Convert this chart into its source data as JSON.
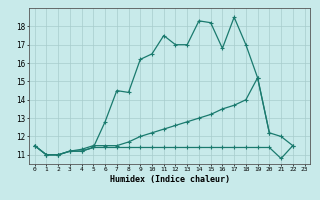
{
  "xlabel": "Humidex (Indice chaleur)",
  "x_values": [
    0,
    1,
    2,
    3,
    4,
    5,
    6,
    7,
    8,
    9,
    10,
    11,
    12,
    13,
    14,
    15,
    16,
    17,
    18,
    19,
    20,
    21,
    22,
    23
  ],
  "line1": [
    11.5,
    11.0,
    11.0,
    11.2,
    11.2,
    11.4,
    12.8,
    14.5,
    14.4,
    16.2,
    16.5,
    17.5,
    17.0,
    17.0,
    18.3,
    18.2,
    16.8,
    18.5,
    17.0,
    15.2,
    12.2,
    null,
    null,
    null
  ],
  "line2": [
    11.5,
    11.0,
    11.0,
    11.2,
    11.3,
    11.5,
    11.5,
    11.5,
    11.7,
    12.0,
    12.2,
    12.4,
    12.6,
    12.8,
    13.0,
    13.2,
    13.5,
    13.7,
    14.0,
    15.2,
    12.2,
    12.0,
    11.5,
    null
  ],
  "line3": [
    11.5,
    11.0,
    11.0,
    11.2,
    11.2,
    11.4,
    11.4,
    11.4,
    11.4,
    11.4,
    11.4,
    11.4,
    11.4,
    11.4,
    11.4,
    11.4,
    11.4,
    11.4,
    11.4,
    11.4,
    11.4,
    10.8,
    11.5,
    null
  ],
  "line_color": "#1a7a6e",
  "bg_color": "#c8eaea",
  "grid_color": "#a8cccc",
  "ylim": [
    10.5,
    19.0
  ],
  "xlim": [
    -0.5,
    23.5
  ],
  "yticks": [
    11,
    12,
    13,
    14,
    15,
    16,
    17,
    18
  ],
  "xticks": [
    0,
    1,
    2,
    3,
    4,
    5,
    6,
    7,
    8,
    9,
    10,
    11,
    12,
    13,
    14,
    15,
    16,
    17,
    18,
    19,
    20,
    21,
    22,
    23
  ]
}
